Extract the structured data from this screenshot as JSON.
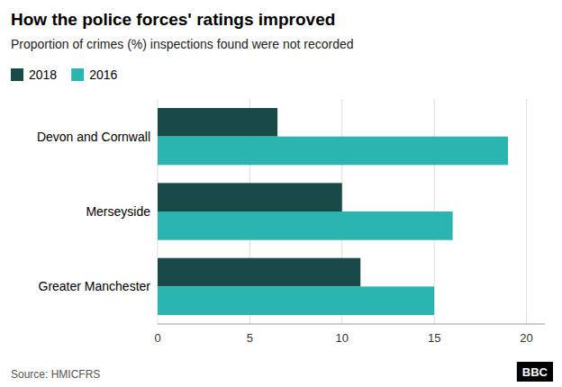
{
  "chart_data": {
    "type": "bar",
    "orientation": "horizontal",
    "title": "How the police forces' ratings improved",
    "subtitle": "Proportion of crimes (%) inspections found were not recorded",
    "categories": [
      "Devon and Cornwall",
      "Merseyside",
      "Greater Manchester"
    ],
    "series": [
      {
        "name": "2018",
        "color": "#1a4a47",
        "values": [
          6.5,
          10,
          11
        ]
      },
      {
        "name": "2016",
        "color": "#2ab5b0",
        "values": [
          19,
          16,
          15
        ]
      }
    ],
    "xlim": [
      0,
      21
    ],
    "xticks": [
      0,
      5,
      10,
      15,
      20
    ],
    "grid": true,
    "legend": "upper left",
    "annotations": [
      "Source: HMICFRS",
      "BBC"
    ]
  }
}
